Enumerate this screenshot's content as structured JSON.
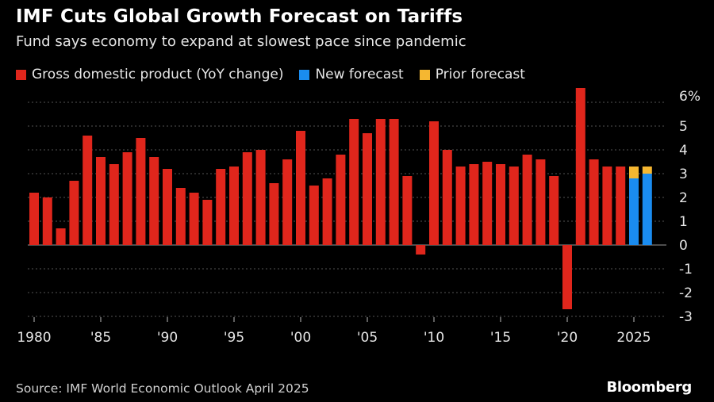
{
  "chart_data": {
    "type": "bar",
    "title": "IMF Cuts Global Growth Forecast on Tariffs",
    "subtitle": "Fund says economy to expand at slowest pace since pandemic",
    "series": [
      {
        "name": "Gross domestic product (YoY change)",
        "color": "#e0261c"
      },
      {
        "name": "New forecast",
        "color": "#1a8cf0"
      },
      {
        "name": "Prior forecast",
        "color": "#f5b731"
      }
    ],
    "x": [
      1980,
      1981,
      1982,
      1983,
      1984,
      1985,
      1986,
      1987,
      1988,
      1989,
      1990,
      1991,
      1992,
      1993,
      1994,
      1995,
      1996,
      1997,
      1998,
      1999,
      2000,
      2001,
      2002,
      2003,
      2004,
      2005,
      2006,
      2007,
      2008,
      2009,
      2010,
      2011,
      2012,
      2013,
      2014,
      2015,
      2016,
      2017,
      2018,
      2019,
      2020,
      2021,
      2022,
      2023,
      2024,
      2025,
      2026
    ],
    "gdp": [
      2.2,
      2.0,
      0.7,
      2.7,
      4.6,
      3.7,
      3.4,
      3.9,
      4.5,
      3.7,
      3.2,
      2.4,
      2.2,
      1.9,
      3.2,
      3.3,
      3.9,
      4.0,
      2.6,
      3.6,
      4.8,
      2.5,
      2.8,
      3.8,
      5.3,
      4.7,
      5.3,
      5.3,
      2.9,
      -0.4,
      5.2,
      4.0,
      3.3,
      3.4,
      3.5,
      3.4,
      3.3,
      3.8,
      3.6,
      2.9,
      -2.7,
      6.6,
      3.6,
      3.3,
      3.3,
      null,
      null
    ],
    "new_forecast": {
      "2025": 2.8,
      "2026": 3.0
    },
    "prior_forecast": {
      "2025": 3.3,
      "2026": 3.3
    },
    "x_tick_labels": [
      {
        "year": 1980,
        "label": "1980"
      },
      {
        "year": 1985,
        "label": "'85"
      },
      {
        "year": 1990,
        "label": "'90"
      },
      {
        "year": 1995,
        "label": "'95"
      },
      {
        "year": 2000,
        "label": "'00"
      },
      {
        "year": 2005,
        "label": "'05"
      },
      {
        "year": 2010,
        "label": "'10"
      },
      {
        "year": 2015,
        "label": "'15"
      },
      {
        "year": 2020,
        "label": "'20"
      },
      {
        "year": 2025,
        "label": "2025"
      }
    ],
    "y_ticks": [
      {
        "value": 6,
        "label": "6%"
      },
      {
        "value": 5,
        "label": "5"
      },
      {
        "value": 4,
        "label": "4"
      },
      {
        "value": 3,
        "label": "3"
      },
      {
        "value": 2,
        "label": "2"
      },
      {
        "value": 1,
        "label": "1"
      },
      {
        "value": 0,
        "label": "0"
      },
      {
        "value": -1,
        "label": "-1"
      },
      {
        "value": -2,
        "label": "-2"
      },
      {
        "value": -3,
        "label": "-3"
      }
    ],
    "ylim": [
      -3,
      6.7
    ],
    "grid": "dotted-horizontal",
    "legend_position": "top-left",
    "source": "Source: IMF World Economic Outlook April 2025"
  },
  "branding": {
    "logo": "Bloomberg"
  },
  "colors": {
    "background": "#000000",
    "gdp": "#e0261c",
    "new_forecast": "#1a8cf0",
    "prior_forecast": "#f5b731",
    "grid": "#555555"
  }
}
